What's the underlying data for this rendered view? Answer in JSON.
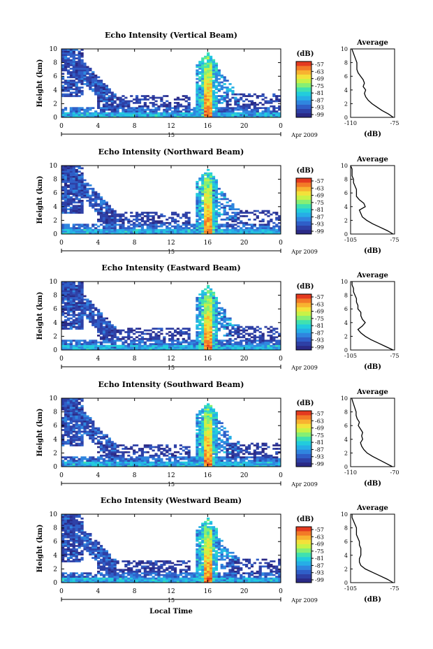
{
  "colors": {
    "colorbar": [
      "#2b2a86",
      "#2e40a6",
      "#2f5fc8",
      "#2f86df",
      "#26aee6",
      "#22ccdc",
      "#3fe1b0",
      "#86ef74",
      "#c8f247",
      "#f3e13a",
      "#f8b230",
      "#f37a27",
      "#e43a1f"
    ],
    "axis": "#000000",
    "grid": "#000000"
  },
  "shared": {
    "date_label": "Apr 2009",
    "day_label": "15",
    "x_ticks": [
      "0",
      "4",
      "8",
      "12",
      "16",
      "20",
      "0"
    ],
    "y_ticks": [
      "0",
      "2",
      "4",
      "6",
      "8",
      "10"
    ],
    "ylabel": "Height (km)",
    "colorbar_unit": "(dB)",
    "colorbar_ticks": [
      "-57",
      "-63",
      "-69",
      "-75",
      "-81",
      "-87",
      "-93",
      "-99"
    ],
    "profile_title": "Average",
    "profile_unit": "(dB)",
    "profile_yticks": [
      "0",
      "2",
      "4",
      "6",
      "8",
      "10"
    ],
    "xlabel": "Local Time"
  },
  "panels": [
    {
      "title": "Echo Intensity (Vertical Beam)",
      "profile_xticks": [
        "-110",
        "-75"
      ]
    },
    {
      "title": "Echo Intensity (Northward Beam)",
      "profile_xticks": [
        "-105",
        "-75"
      ]
    },
    {
      "title": "Echo Intensity (Eastward Beam)",
      "profile_xticks": [
        "-105",
        "-75"
      ]
    },
    {
      "title": "Echo Intensity (Southward Beam)",
      "profile_xticks": [
        "-110",
        "-70"
      ]
    },
    {
      "title": "Echo Intensity (Westward Beam)",
      "profile_xticks": [
        "-105",
        "-75"
      ]
    }
  ],
  "chart_data": [
    {
      "type": "heatmap",
      "title": "Echo Intensity (Vertical Beam)",
      "xlabel": "",
      "ylabel": "Height (km)",
      "xlim": [
        0,
        24
      ],
      "ylim": [
        0,
        10
      ],
      "clim": [
        -99,
        -57
      ],
      "profile": {
        "type": "line",
        "title": "Average",
        "xlabel": "(dB)",
        "xlim": [
          -110,
          -75
        ],
        "ylim": [
          0,
          10
        ],
        "x": [
          -76,
          -80,
          -85,
          -89,
          -93,
          -96,
          -98,
          -99,
          -98,
          -100,
          -99,
          -100,
          -102,
          -104,
          -105,
          -105,
          -105,
          -106,
          -107,
          -108,
          -109
        ],
        "y": [
          0,
          0.5,
          1,
          1.5,
          2,
          2.5,
          3,
          3.5,
          4,
          4.5,
          5,
          5.5,
          6,
          6.5,
          7,
          7.5,
          8,
          8.5,
          9,
          9.5,
          10
        ]
      }
    },
    {
      "type": "heatmap",
      "title": "Echo Intensity (Northward Beam)",
      "xlabel": "",
      "ylabel": "Height (km)",
      "xlim": [
        0,
        24
      ],
      "ylim": [
        0,
        10
      ],
      "clim": [
        -99,
        -57
      ],
      "profile": {
        "type": "line",
        "title": "Average",
        "xlabel": "(dB)",
        "xlim": [
          -105,
          -75
        ],
        "ylim": [
          0,
          10
        ],
        "x": [
          -76,
          -80,
          -85,
          -90,
          -94,
          -97,
          -98,
          -99,
          -95,
          -96,
          -99,
          -101,
          -101,
          -101,
          -102,
          -103,
          -103,
          -104,
          -104,
          -104,
          -105
        ],
        "y": [
          0,
          0.5,
          1,
          1.5,
          2,
          2.5,
          3,
          3.5,
          4,
          4.5,
          5,
          5.5,
          6,
          6.5,
          7,
          7.5,
          8,
          8.5,
          9,
          9.5,
          10
        ]
      }
    },
    {
      "type": "heatmap",
      "title": "Echo Intensity (Eastward Beam)",
      "xlabel": "",
      "ylabel": "Height (km)",
      "xlim": [
        0,
        24
      ],
      "ylim": [
        0,
        10
      ],
      "clim": [
        -99,
        -57
      ],
      "profile": {
        "type": "line",
        "title": "Average",
        "xlabel": "(dB)",
        "xlim": [
          -105,
          -75
        ],
        "ylim": [
          0,
          10
        ],
        "x": [
          -76,
          -81,
          -86,
          -91,
          -95,
          -98,
          -100,
          -97,
          -95,
          -97,
          -98,
          -98,
          -100,
          -100,
          -101,
          -101,
          -102,
          -103,
          -103,
          -104,
          -104
        ],
        "y": [
          0,
          0.5,
          1,
          1.5,
          2,
          2.5,
          3,
          3.5,
          4,
          4.5,
          5,
          5.5,
          6,
          6.5,
          7,
          7.5,
          8,
          8.5,
          9,
          9.5,
          10
        ]
      }
    },
    {
      "type": "heatmap",
      "title": "Echo Intensity (Southward Beam)",
      "xlabel": "",
      "ylabel": "Height (km)",
      "xlim": [
        0,
        24
      ],
      "ylim": [
        0,
        10
      ],
      "clim": [
        -99,
        -57
      ],
      "profile": {
        "type": "line",
        "title": "Average",
        "xlabel": "(dB)",
        "xlim": [
          -110,
          -70
        ],
        "ylim": [
          0,
          10
        ],
        "x": [
          -72,
          -78,
          -84,
          -90,
          -95,
          -98,
          -100,
          -101,
          -99,
          -100,
          -99,
          -101,
          -103,
          -102,
          -104,
          -105,
          -105,
          -106,
          -107,
          -108,
          -109
        ],
        "y": [
          0,
          0.5,
          1,
          1.5,
          2,
          2.5,
          3,
          3.5,
          4,
          4.5,
          5,
          5.5,
          6,
          6.5,
          7,
          7.5,
          8,
          8.5,
          9,
          9.5,
          10
        ]
      }
    },
    {
      "type": "heatmap",
      "title": "Echo Intensity (Westward Beam)",
      "xlabel": "Local Time",
      "ylabel": "Height (km)",
      "xlim": [
        0,
        24
      ],
      "ylim": [
        0,
        10
      ],
      "clim": [
        -99,
        -57
      ],
      "profile": {
        "type": "line",
        "title": "Average",
        "xlabel": "(dB)",
        "xlim": [
          -105,
          -75
        ],
        "ylim": [
          0,
          10
        ],
        "x": [
          -76,
          -80,
          -85,
          -90,
          -95,
          -98,
          -99,
          -99,
          -98,
          -98,
          -98,
          -99,
          -99,
          -100,
          -101,
          -101,
          -101,
          -102,
          -103,
          -104,
          -104
        ],
        "y": [
          0,
          0.5,
          1,
          1.5,
          2,
          2.5,
          3,
          3.5,
          4,
          4.5,
          5,
          5.5,
          6,
          6.5,
          7,
          7.5,
          8,
          8.5,
          9,
          9.5,
          10
        ]
      }
    }
  ]
}
